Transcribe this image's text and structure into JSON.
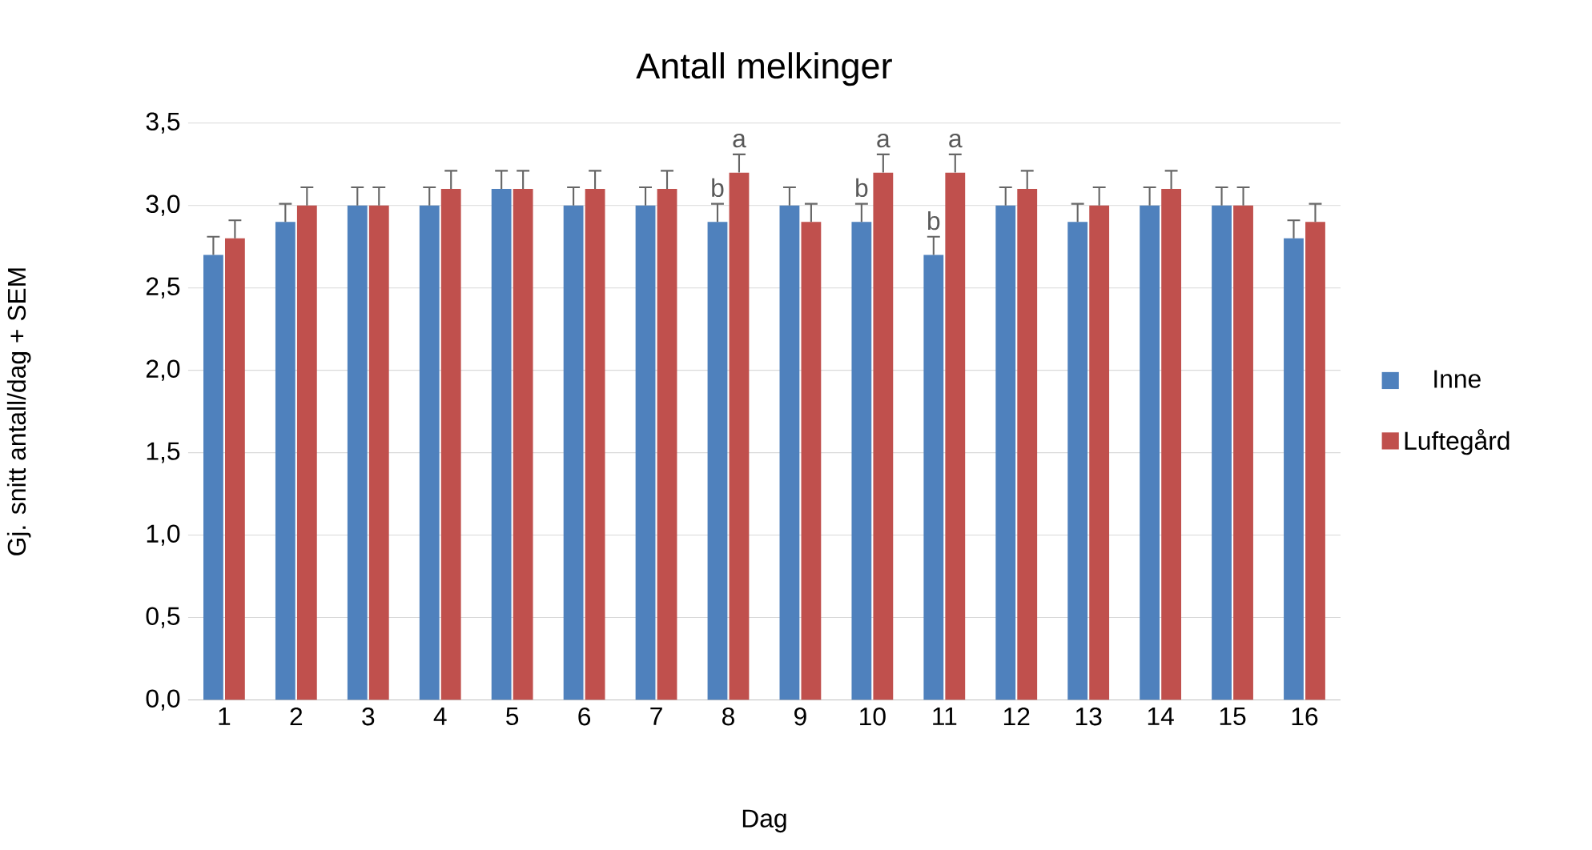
{
  "chart_data": {
    "type": "bar",
    "title": "Antall melkinger",
    "xlabel": "Dag",
    "ylabel": "Gj. snitt antall/dag + SEM",
    "categories": [
      "1",
      "2",
      "3",
      "4",
      "5",
      "6",
      "7",
      "8",
      "9",
      "10",
      "11",
      "12",
      "13",
      "14",
      "15",
      "16"
    ],
    "series": [
      {
        "name": "Inne",
        "color": "#4f81bd",
        "values": [
          2.7,
          2.9,
          3.0,
          3.0,
          3.1,
          3.0,
          3.0,
          2.9,
          3.0,
          2.9,
          2.7,
          3.0,
          2.9,
          3.0,
          3.0,
          2.8
        ],
        "errors": [
          [
            2.7,
            2.81
          ],
          [
            2.9,
            3.01
          ],
          [
            3.0,
            3.11
          ],
          [
            3.0,
            3.11
          ],
          [
            3.1,
            3.21
          ],
          [
            3.0,
            3.11
          ],
          [
            3.0,
            3.11
          ],
          [
            2.9,
            3.01
          ],
          [
            3.0,
            3.11
          ],
          [
            2.9,
            3.01
          ],
          [
            2.7,
            2.81
          ],
          [
            3.0,
            3.11
          ],
          [
            2.9,
            3.01
          ],
          [
            3.0,
            3.11
          ],
          [
            3.0,
            3.11
          ],
          [
            2.8,
            2.91
          ]
        ]
      },
      {
        "name": "Luftegård",
        "color": "#c0504d",
        "values": [
          2.8,
          3.0,
          3.0,
          3.1,
          3.1,
          3.1,
          3.1,
          3.2,
          2.9,
          3.2,
          3.2,
          3.1,
          3.0,
          3.1,
          3.0,
          2.9
        ],
        "errors": [
          [
            2.8,
            2.91
          ],
          [
            3.0,
            3.11
          ],
          [
            3.0,
            3.11
          ],
          [
            3.1,
            3.21
          ],
          [
            3.1,
            3.21
          ],
          [
            3.1,
            3.21
          ],
          [
            3.1,
            3.21
          ],
          [
            3.2,
            3.31
          ],
          [
            2.9,
            3.01
          ],
          [
            3.2,
            3.31
          ],
          [
            3.2,
            3.31
          ],
          [
            3.1,
            3.21
          ],
          [
            3.0,
            3.11
          ],
          [
            3.1,
            3.21
          ],
          [
            3.0,
            3.11
          ],
          [
            2.9,
            3.01
          ]
        ]
      }
    ],
    "ylim": [
      0,
      3.5
    ],
    "yticks": [
      {
        "value": 0,
        "label": "0,0"
      },
      {
        "value": 0.5,
        "label": "0,5"
      },
      {
        "value": 1,
        "label": "1,0"
      },
      {
        "value": 1.5,
        "label": "1,5"
      },
      {
        "value": 2,
        "label": "2,0"
      },
      {
        "value": 2.5,
        "label": "2,5"
      },
      {
        "value": 3,
        "label": "3,0"
      },
      {
        "value": 3.5,
        "label": "3,5"
      }
    ],
    "grid": "y",
    "legend": "right",
    "annotations": [
      {
        "text": "b",
        "x": "8",
        "y": 2.9
      },
      {
        "text": "a",
        "x": "8",
        "y": 3.2
      },
      {
        "text": "b",
        "x": "10",
        "y": 2.9
      },
      {
        "text": "a",
        "x": "10",
        "y": 3.2
      },
      {
        "text": "b",
        "x": "11",
        "y": 2.7
      },
      {
        "text": "a",
        "x": "11",
        "y": 3.2
      }
    ]
  }
}
